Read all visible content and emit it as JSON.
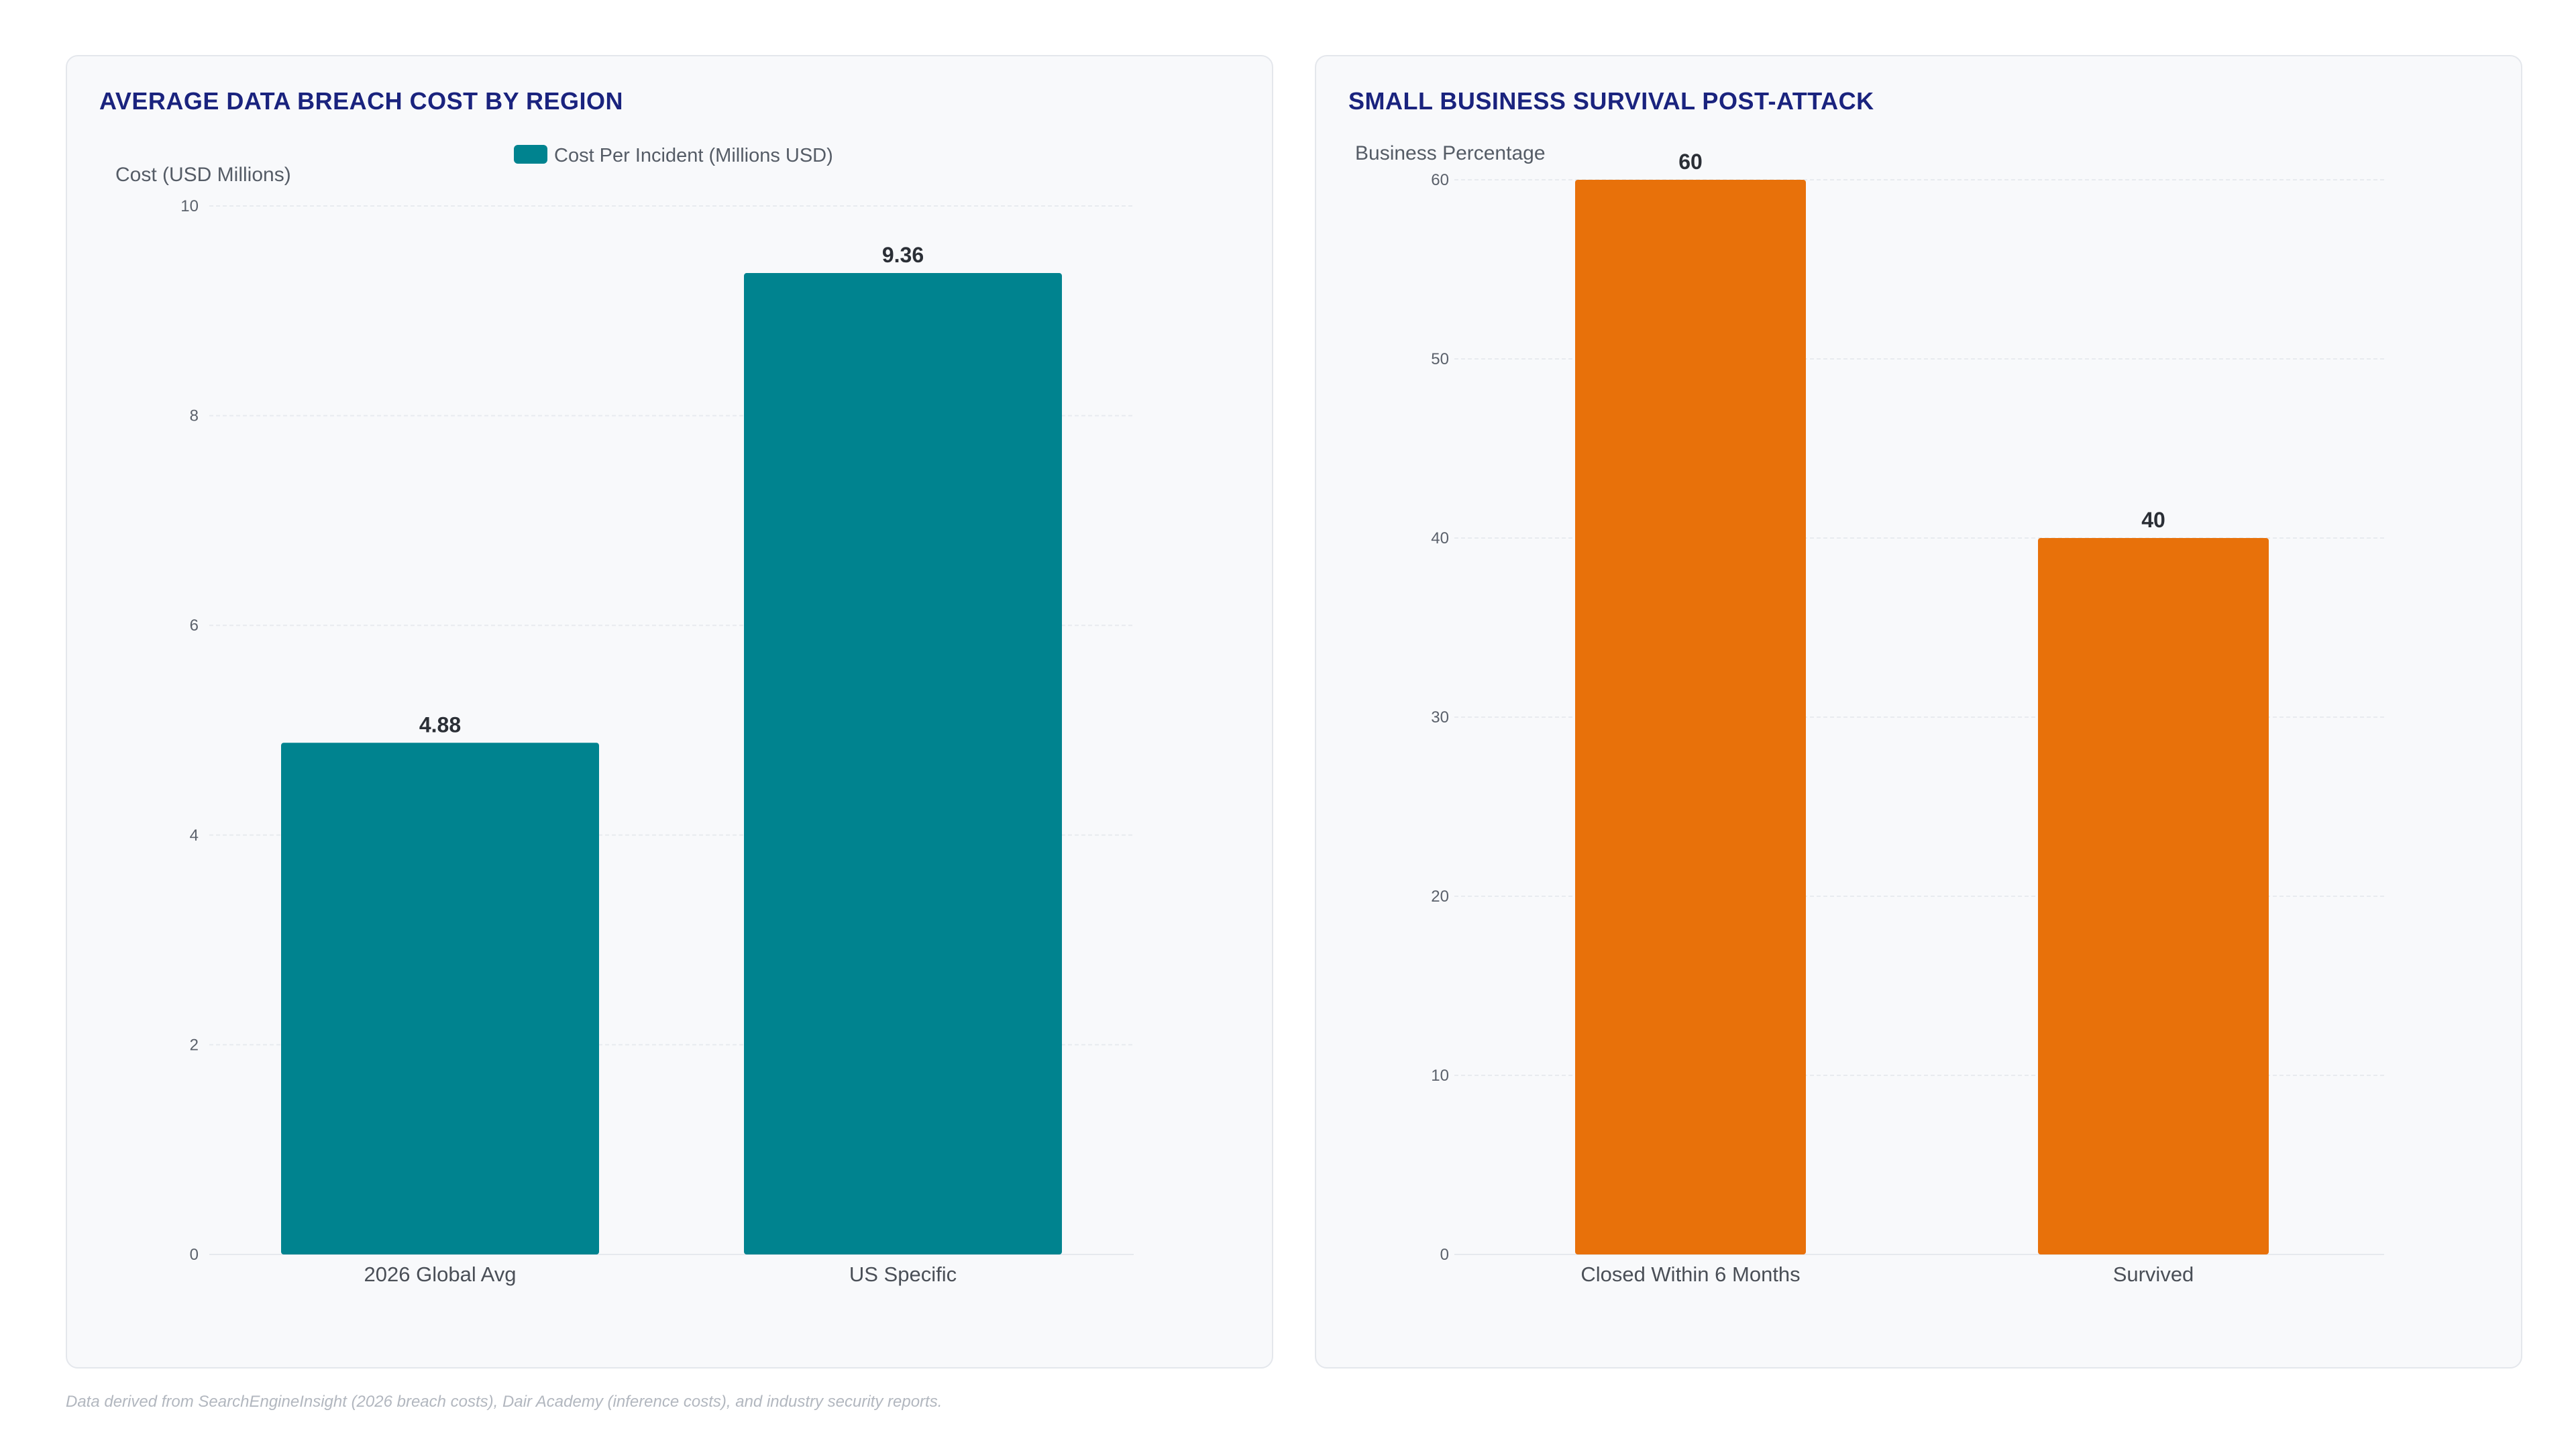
{
  "chart_data": [
    {
      "type": "bar",
      "title": "AVERAGE DATA BREACH COST BY REGION",
      "ylabel": "Cost (USD Millions)",
      "xlabel": "",
      "ylim": [
        0,
        10
      ],
      "yticks": [
        0,
        2,
        4,
        6,
        8,
        10
      ],
      "categories": [
        "2026 Global Avg",
        "US Specific"
      ],
      "series": [
        {
          "name": "Cost Per Incident (Millions USD)",
          "values": [
            4.88,
            9.36
          ],
          "color": "#00838f"
        }
      ],
      "legend": "top-center",
      "grid": true
    },
    {
      "type": "bar",
      "title": "SMALL BUSINESS SURVIVAL POST-ATTACK",
      "ylabel": "Business Percentage",
      "xlabel": "",
      "ylim": [
        0,
        60
      ],
      "yticks": [
        0,
        10,
        20,
        30,
        40,
        50,
        60
      ],
      "categories": [
        "Closed Within 6 Months",
        "Survived"
      ],
      "series": [
        {
          "values": [
            60,
            40
          ],
          "color": "#e8710a"
        }
      ],
      "legend": "none",
      "grid": true
    }
  ],
  "footnote": "Data derived from SearchEngineInsight (2026 breach costs), Dair Academy (inference costs), and industry security reports."
}
